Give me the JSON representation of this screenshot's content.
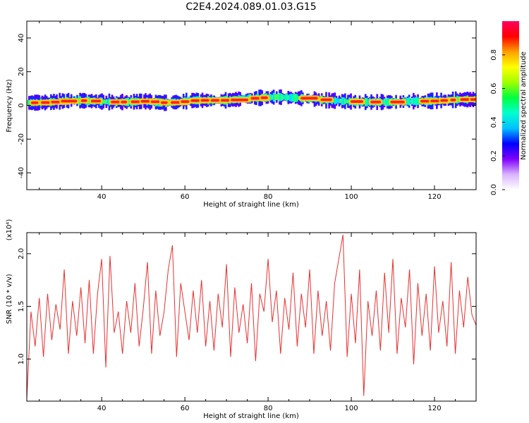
{
  "figure_title": "C2E4.2024.089.01.03.G15",
  "chart_data": [
    {
      "type": "heatmap",
      "title": "",
      "xlabel": "Height of straight line (km)",
      "ylabel": "Frequency (Hz)",
      "xlim": [
        22,
        130
      ],
      "ylim": [
        -50,
        50
      ],
      "x_ticks": [
        40,
        60,
        80,
        100,
        120
      ],
      "y_ticks": [
        40,
        20,
        0,
        -20,
        -40
      ],
      "y_tick_labels": [
        "40",
        "20",
        "0",
        "-20",
        "-40"
      ],
      "colorbar": {
        "label": "Normalized spectral amplitude",
        "range": [
          0.0,
          1.0
        ],
        "ticks": [
          0.0,
          0.2,
          0.4,
          0.6,
          0.8
        ],
        "tick_labels": [
          "0.0",
          "0.2",
          "0.4",
          "0.6",
          "0.8"
        ],
        "colormap": [
          "#ffffff",
          "#d9b3ff",
          "#8000ff",
          "#0000ff",
          "#00c0ff",
          "#00ffd0",
          "#00ff40",
          "#a0ff00",
          "#ffff00",
          "#ffa000",
          "#ff0000",
          "#ff0060"
        ]
      },
      "band_center_hz": [
        [
          22,
          1.5
        ],
        [
          27,
          1.8
        ],
        [
          30,
          2.5
        ],
        [
          33,
          3.0
        ],
        [
          38,
          2.5
        ],
        [
          42,
          2.0
        ],
        [
          46,
          2.0
        ],
        [
          50,
          2.5
        ],
        [
          55,
          1.5
        ],
        [
          58,
          2.0
        ],
        [
          62,
          3.0
        ],
        [
          66,
          3.0
        ],
        [
          70,
          3.0
        ],
        [
          74,
          4.0
        ],
        [
          78,
          4.5
        ],
        [
          82,
          5.0
        ],
        [
          86,
          4.5
        ],
        [
          90,
          4.0
        ],
        [
          94,
          3.0
        ],
        [
          98,
          2.5
        ],
        [
          102,
          2.0
        ],
        [
          106,
          2.0
        ],
        [
          110,
          2.0
        ],
        [
          114,
          2.5
        ],
        [
          118,
          2.5
        ],
        [
          122,
          3.0
        ],
        [
          126,
          3.5
        ],
        [
          130,
          3.5
        ]
      ]
    },
    {
      "type": "line",
      "title": "",
      "xlabel": "Height of straight line (km)",
      "ylabel": "SNR (10 * v/v)",
      "y_multiplier_label": "(x10⁴)",
      "xlim": [
        22,
        130
      ],
      "ylim": [
        0.6,
        2.2
      ],
      "x_ticks": [
        40,
        60,
        80,
        100,
        120
      ],
      "y_ticks": [
        1.0,
        1.5,
        2.0
      ],
      "y_tick_labels": [
        "1.0",
        "1.5",
        "2.0"
      ],
      "line_color": "#e83030",
      "series": [
        {
          "x": [
            22,
            23,
            24,
            25,
            26,
            27,
            28,
            29,
            30,
            31,
            32,
            33,
            34,
            35,
            36,
            37,
            38,
            39,
            40,
            41,
            42,
            43,
            44,
            45,
            46,
            47,
            48,
            49,
            50,
            51,
            52,
            53,
            54,
            55,
            56,
            57,
            58,
            59,
            60,
            61,
            62,
            63,
            64,
            65,
            66,
            67,
            68,
            69,
            70,
            71,
            72,
            73,
            74,
            75,
            76,
            77,
            78,
            79,
            80,
            81,
            82,
            83,
            84,
            85,
            86,
            87,
            88,
            89,
            90,
            91,
            92,
            93,
            94,
            95,
            96,
            97,
            98,
            99,
            100,
            101,
            102,
            103,
            104,
            105,
            106,
            107,
            108,
            109,
            110,
            111,
            112,
            113,
            114,
            115,
            116,
            117,
            118,
            119,
            120,
            121,
            122,
            123,
            124,
            125,
            126,
            127,
            128,
            129,
            130
          ],
          "values": [
            0.62,
            1.45,
            1.12,
            1.58,
            1.02,
            1.62,
            1.18,
            1.52,
            1.28,
            1.85,
            1.05,
            1.55,
            1.22,
            1.68,
            1.15,
            1.75,
            1.05,
            1.62,
            1.95,
            0.92,
            1.98,
            1.25,
            1.45,
            1.05,
            1.55,
            1.25,
            1.72,
            1.12,
            1.48,
            1.92,
            1.05,
            1.65,
            1.22,
            1.45,
            1.85,
            2.08,
            1.02,
            1.72,
            1.45,
            1.18,
            1.65,
            1.25,
            1.75,
            1.12,
            1.55,
            1.08,
            1.62,
            1.3,
            1.9,
            1.02,
            1.68,
            1.25,
            1.52,
            1.15,
            1.72,
            0.98,
            1.62,
            1.45,
            1.95,
            1.35,
            1.65,
            1.05,
            1.58,
            1.28,
            1.82,
            1.12,
            1.62,
            1.3,
            1.85,
            1.05,
            1.65,
            1.22,
            1.55,
            1.08,
            1.72,
            1.95,
            2.18,
            1.02,
            1.62,
            1.15,
            1.85,
            0.65,
            1.55,
            1.22,
            1.65,
            1.08,
            1.82,
            1.25,
            1.95,
            1.05,
            1.58,
            1.3,
            1.85,
            0.95,
            1.72,
            1.22,
            1.62,
            1.08,
            1.88,
            1.25,
            1.55,
            1.12,
            1.92,
            1.05,
            1.65,
            1.3,
            1.78,
            1.42,
            1.32
          ]
        }
      ]
    }
  ]
}
